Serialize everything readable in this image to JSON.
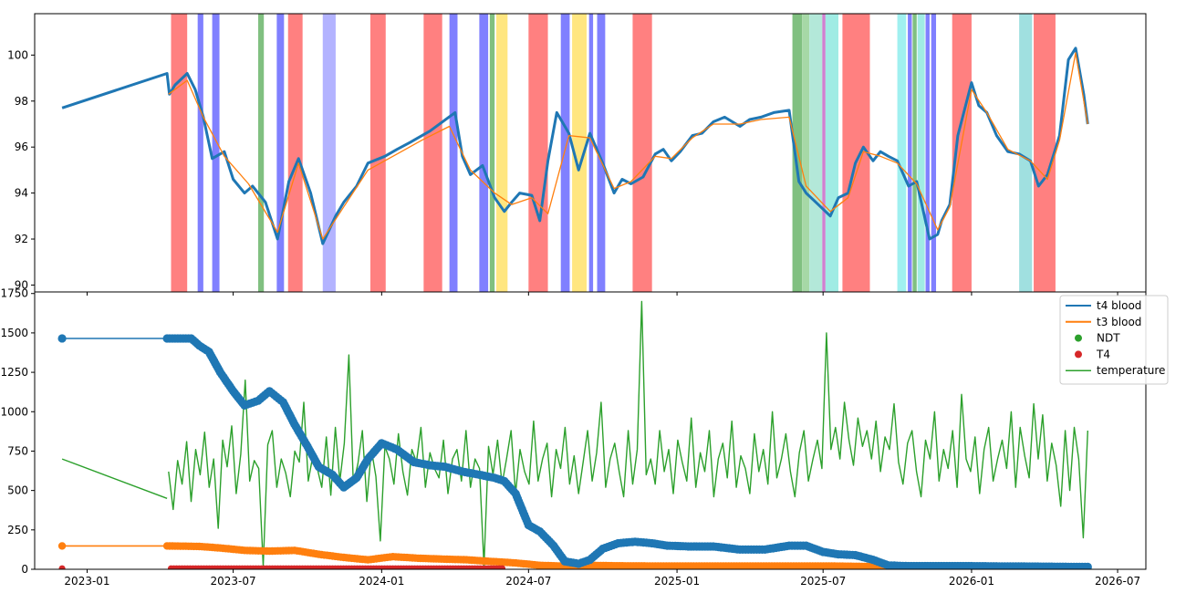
{
  "chart_data": [
    {
      "type": "line",
      "panel": "top",
      "title": "",
      "xlabel": "",
      "ylabel": "",
      "ylim": [
        89.7,
        101.8
      ],
      "yticks": [
        90,
        92,
        94,
        96,
        98,
        100
      ],
      "xlim": [
        "2022-10-28",
        "2026-08-05"
      ],
      "grid": false,
      "series": [
        {
          "color": "#1f77b4",
          "x": [
            "2022-12-01",
            "2023-04-10",
            "2023-04-13",
            "2023-04-20",
            "2023-05-05",
            "2023-05-15",
            "2023-05-25",
            "2023-06-05",
            "2023-06-20",
            "2023-07-01",
            "2023-07-15",
            "2023-07-25",
            "2023-08-10",
            "2023-08-25",
            "2023-09-08",
            "2023-09-20",
            "2023-10-05",
            "2023-10-20",
            "2023-11-05",
            "2023-11-15",
            "2023-12-01",
            "2023-12-15",
            "2024-01-05",
            "2024-01-20",
            "2024-02-05",
            "2024-02-20",
            "2024-03-01",
            "2024-04-01",
            "2024-04-10",
            "2024-04-20",
            "2024-05-05",
            "2024-05-20",
            "2024-06-01",
            "2024-06-10",
            "2024-06-20",
            "2024-07-05",
            "2024-07-15",
            "2024-07-25",
            "2024-08-05",
            "2024-08-20",
            "2024-09-01",
            "2024-09-15",
            "2024-10-01",
            "2024-10-15",
            "2024-10-25",
            "2024-11-05",
            "2024-11-20",
            "2024-12-05",
            "2024-12-15",
            "2024-12-25",
            "2025-01-05",
            "2025-01-20",
            "2025-02-01",
            "2025-02-15",
            "2025-03-01",
            "2025-03-20",
            "2025-04-01",
            "2025-04-15",
            "2025-05-01",
            "2025-05-20",
            "2025-06-01",
            "2025-06-10",
            "2025-06-25",
            "2025-07-10",
            "2025-07-20",
            "2025-08-01",
            "2025-08-10",
            "2025-08-20",
            "2025-09-01",
            "2025-09-10",
            "2025-09-20",
            "2025-10-01",
            "2025-10-15",
            "2025-10-25",
            "2025-11-10",
            "2025-11-20",
            "2025-11-25",
            "2025-12-05",
            "2025-12-15",
            "2026-01-01",
            "2026-01-10",
            "2026-01-20",
            "2026-02-01",
            "2026-02-15",
            "2026-03-01",
            "2026-03-15",
            "2026-03-25",
            "2026-04-05",
            "2026-04-20",
            "2026-05-01",
            "2026-05-10",
            "2026-05-20",
            "2026-05-25"
          ],
          "y": [
            97.7,
            99.2,
            98.3,
            98.7,
            99.2,
            98.5,
            97.3,
            95.5,
            95.8,
            94.6,
            94.0,
            94.3,
            93.6,
            92.0,
            94.5,
            95.5,
            94.0,
            91.8,
            93.0,
            93.6,
            94.3,
            95.3,
            95.6,
            95.9,
            96.2,
            96.5,
            96.7,
            97.5,
            95.6,
            94.8,
            95.2,
            93.8,
            93.2,
            93.6,
            94.0,
            93.9,
            92.8,
            95.4,
            97.5,
            96.6,
            95.0,
            96.6,
            95.3,
            94.0,
            94.6,
            94.4,
            94.7,
            95.7,
            95.9,
            95.4,
            95.8,
            96.5,
            96.6,
            97.1,
            97.3,
            96.9,
            97.2,
            97.3,
            97.5,
            97.6,
            94.5,
            94.0,
            93.5,
            93.0,
            93.8,
            94.0,
            95.3,
            96.0,
            95.4,
            95.8,
            95.6,
            95.4,
            94.3,
            94.5,
            92.0,
            92.2,
            92.8,
            93.5,
            96.5,
            98.8,
            97.8,
            97.5,
            96.5,
            95.8,
            95.7,
            95.4,
            94.3,
            94.8,
            96.5,
            99.8,
            100.3,
            98.3,
            97.0
          ]
        },
        {
          "color": "#ff7f0e",
          "x": [
            "2023-04-12",
            "2023-05-05",
            "2023-05-25",
            "2023-06-20",
            "2023-07-20",
            "2023-08-25",
            "2023-09-20",
            "2023-10-20",
            "2023-11-15",
            "2023-12-15",
            "2024-01-20",
            "2024-02-20",
            "2024-03-25",
            "2024-04-20",
            "2024-05-20",
            "2024-06-10",
            "2024-07-05",
            "2024-07-25",
            "2024-08-20",
            "2024-09-15",
            "2024-10-15",
            "2024-11-05",
            "2024-12-05",
            "2024-12-25",
            "2025-01-20",
            "2025-02-15",
            "2025-03-20",
            "2025-04-15",
            "2025-05-20",
            "2025-06-10",
            "2025-07-10",
            "2025-08-01",
            "2025-08-20",
            "2025-09-10",
            "2025-10-01",
            "2025-10-25",
            "2025-11-20",
            "2025-12-05",
            "2026-01-01",
            "2026-01-20",
            "2026-02-15",
            "2026-03-15",
            "2026-04-05",
            "2026-04-20",
            "2026-05-10",
            "2026-05-25"
          ],
          "y": [
            98.3,
            98.9,
            97.3,
            95.6,
            94.4,
            92.3,
            95.3,
            92.0,
            93.4,
            95.0,
            95.7,
            96.3,
            96.9,
            95.0,
            94.0,
            93.5,
            93.8,
            93.1,
            96.5,
            96.4,
            94.2,
            94.5,
            95.6,
            95.5,
            96.4,
            97.0,
            97.0,
            97.2,
            97.3,
            94.3,
            93.2,
            93.8,
            95.8,
            95.6,
            95.3,
            94.4,
            92.4,
            93.4,
            98.5,
            97.5,
            95.9,
            95.4,
            94.6,
            96.3,
            100.1,
            97.0
          ]
        }
      ],
      "bands": [
        {
          "start": "2023-04-15",
          "end": "2023-05-05",
          "color": "#ff8080"
        },
        {
          "start": "2023-05-18",
          "end": "2023-05-25",
          "color": "#8080ff"
        },
        {
          "start": "2023-06-05",
          "end": "2023-06-14",
          "color": "#8080ff"
        },
        {
          "start": "2023-08-01",
          "end": "2023-08-08",
          "color": "#80c080"
        },
        {
          "start": "2023-08-24",
          "end": "2023-09-02",
          "color": "#8080ff"
        },
        {
          "start": "2023-09-07",
          "end": "2023-09-25",
          "color": "#ff8080"
        },
        {
          "start": "2023-10-20",
          "end": "2023-11-05",
          "color": "#b3b3ff"
        },
        {
          "start": "2023-12-18",
          "end": "2024-01-06",
          "color": "#ff8080"
        },
        {
          "start": "2024-02-22",
          "end": "2024-03-16",
          "color": "#ff8080"
        },
        {
          "start": "2024-03-25",
          "end": "2024-04-04",
          "color": "#8080ff"
        },
        {
          "start": "2024-05-01",
          "end": "2024-05-12",
          "color": "#8080ff"
        },
        {
          "start": "2024-05-14",
          "end": "2024-05-20",
          "color": "#80c080"
        },
        {
          "start": "2024-05-22",
          "end": "2024-06-05",
          "color": "#ffe680"
        },
        {
          "start": "2024-07-01",
          "end": "2024-07-25",
          "color": "#ff8080"
        },
        {
          "start": "2024-08-10",
          "end": "2024-08-21",
          "color": "#8080ff"
        },
        {
          "start": "2024-08-24",
          "end": "2024-09-11",
          "color": "#ffe680"
        },
        {
          "start": "2024-09-14",
          "end": "2024-09-19",
          "color": "#8080ff"
        },
        {
          "start": "2024-09-24",
          "end": "2024-10-04",
          "color": "#8080ff"
        },
        {
          "start": "2024-11-07",
          "end": "2024-12-01",
          "color": "#ff8080"
        },
        {
          "start": "2025-05-24",
          "end": "2025-06-05",
          "color": "#80c080"
        },
        {
          "start": "2025-06-05",
          "end": "2025-06-14",
          "color": "#a6d8a6"
        },
        {
          "start": "2025-06-14",
          "end": "2025-06-30",
          "color": "#b3e8d9"
        },
        {
          "start": "2025-06-30",
          "end": "2025-07-04",
          "color": "#d080d0"
        },
        {
          "start": "2025-07-04",
          "end": "2025-07-20",
          "color": "#a0ece4"
        },
        {
          "start": "2025-07-25",
          "end": "2025-08-28",
          "color": "#ff8080"
        },
        {
          "start": "2025-10-01",
          "end": "2025-10-12",
          "color": "#a0f0f0"
        },
        {
          "start": "2025-10-14",
          "end": "2025-10-19",
          "color": "#8080ff"
        },
        {
          "start": "2025-10-20",
          "end": "2025-10-25",
          "color": "#80c080"
        },
        {
          "start": "2025-10-26",
          "end": "2025-11-04",
          "color": "#a0ece4"
        },
        {
          "start": "2025-11-05",
          "end": "2025-11-10",
          "color": "#8080ff"
        },
        {
          "start": "2025-11-12",
          "end": "2025-11-18",
          "color": "#8080ff"
        },
        {
          "start": "2025-12-08",
          "end": "2026-01-01",
          "color": "#ff8080"
        },
        {
          "start": "2026-03-01",
          "end": "2026-03-17",
          "color": "#a0e0e0"
        },
        {
          "start": "2026-03-19",
          "end": "2026-04-15",
          "color": "#ff8080"
        }
      ]
    },
    {
      "type": "line",
      "panel": "bottom",
      "title": "",
      "xlabel": "",
      "ylabel": "",
      "ylim": [
        0,
        1760
      ],
      "yticks": [
        0,
        250,
        500,
        750,
        1000,
        1250,
        1500,
        1750
      ],
      "xlim": [
        "2022-10-28",
        "2026-08-05"
      ],
      "xticks": [
        "2023-01",
        "2023-07",
        "2024-01",
        "2024-07",
        "2025-01",
        "2025-07",
        "2026-01",
        "2026-07"
      ],
      "legend": "top-right",
      "grid": false,
      "series": [
        {
          "name": "t4 blood",
          "color": "#1f77b4",
          "style": "line-with-markers",
          "x": [
            "2022-12-01",
            "2023-04-10",
            "2023-05-10",
            "2023-05-20",
            "2023-06-01",
            "2023-06-15",
            "2023-07-01",
            "2023-07-15",
            "2023-08-01",
            "2023-08-15",
            "2023-09-01",
            "2023-09-15",
            "2023-10-01",
            "2023-10-15",
            "2023-11-01",
            "2023-11-15",
            "2023-12-01",
            "2023-12-15",
            "2024-01-01",
            "2024-01-20",
            "2024-02-10",
            "2024-03-01",
            "2024-03-20",
            "2024-04-10",
            "2024-05-01",
            "2024-05-20",
            "2024-06-01",
            "2024-06-15",
            "2024-07-01",
            "2024-07-15",
            "2024-08-01",
            "2024-08-15",
            "2024-09-01",
            "2024-09-15",
            "2024-10-01",
            "2024-10-20",
            "2024-11-10",
            "2024-12-01",
            "2024-12-20",
            "2025-01-15",
            "2025-02-15",
            "2025-03-20",
            "2025-04-20",
            "2025-05-20",
            "2025-06-10",
            "2025-07-01",
            "2025-07-20",
            "2025-08-10",
            "2025-09-01",
            "2025-09-20",
            "2025-10-15",
            "2026-01-01",
            "2026-05-25"
          ],
          "y": [
            1465,
            1465,
            1465,
            1420,
            1380,
            1250,
            1130,
            1040,
            1070,
            1130,
            1060,
            920,
            780,
            650,
            600,
            520,
            580,
            700,
            800,
            760,
            680,
            660,
            650,
            620,
            600,
            580,
            560,
            480,
            280,
            240,
            150,
            50,
            35,
            60,
            130,
            165,
            175,
            165,
            150,
            145,
            145,
            125,
            125,
            150,
            150,
            110,
            95,
            90,
            60,
            25,
            20,
            20,
            15
          ]
        },
        {
          "name": "t3 blood",
          "color": "#ff7f0e",
          "style": "line-with-markers",
          "x": [
            "2022-12-01",
            "2023-04-10",
            "2023-05-20",
            "2023-06-15",
            "2023-07-15",
            "2023-08-15",
            "2023-09-15",
            "2023-10-15",
            "2023-11-15",
            "2023-12-15",
            "2024-01-15",
            "2024-02-15",
            "2024-03-15",
            "2024-04-15",
            "2024-05-15",
            "2024-06-15",
            "2024-07-15",
            "2024-08-15",
            "2024-09-15",
            "2024-10-15",
            "2025-01-15",
            "2025-04-15",
            "2025-07-15",
            "2025-10-15",
            "2026-01-15",
            "2026-05-25"
          ],
          "y": [
            148,
            148,
            145,
            135,
            120,
            115,
            120,
            95,
            75,
            60,
            80,
            70,
            65,
            60,
            50,
            40,
            25,
            20,
            25,
            22,
            20,
            20,
            20,
            15,
            15,
            15
          ]
        },
        {
          "name": "NDT",
          "color": "#2ca02c",
          "style": "markers",
          "x": [],
          "y": []
        },
        {
          "name": "T4",
          "color": "#d62728",
          "style": "markers",
          "x": [
            "2022-12-01",
            "2023-04-15",
            "2023-06-01",
            "2023-08-01",
            "2023-10-01",
            "2023-12-01",
            "2024-02-01",
            "2024-04-01",
            "2024-06-01"
          ],
          "y": [
            5,
            5,
            5,
            5,
            5,
            5,
            5,
            5,
            5
          ]
        },
        {
          "name": "temperature",
          "color": "#2ca02c",
          "style": "line",
          "x_start": "2023-04-12",
          "x_end": "2026-05-25",
          "head": {
            "x": [
              "2022-12-01",
              "2023-04-10"
            ],
            "y": [
              700,
              450
            ]
          },
          "y": [
            620,
            380,
            690,
            540,
            810,
            430,
            760,
            600,
            870,
            520,
            700,
            260,
            820,
            650,
            910,
            480,
            730,
            1200,
            560,
            690,
            640,
            20,
            790,
            880,
            520,
            700,
            610,
            460,
            750,
            680,
            1060,
            560,
            720,
            640,
            520,
            840,
            470,
            900,
            560,
            800,
            1360,
            540,
            670,
            880,
            430,
            760,
            590,
            180,
            780,
            700,
            540,
            860,
            620,
            470,
            760,
            680,
            900,
            520,
            740,
            640,
            580,
            820,
            480,
            700,
            760,
            560,
            880,
            520,
            700,
            640,
            20,
            780,
            600,
            820,
            540,
            700,
            880,
            480,
            760,
            620,
            540,
            940,
            560,
            700,
            800,
            460,
            760,
            640,
            900,
            540,
            720,
            480,
            680,
            880,
            560,
            740,
            1060,
            520,
            700,
            800,
            620,
            460,
            880,
            540,
            760,
            1700,
            600,
            700,
            540,
            880,
            620,
            760,
            480,
            820,
            680,
            560,
            960,
            520,
            740,
            620,
            880,
            460,
            700,
            800,
            580,
            940,
            520,
            720,
            640,
            480,
            860,
            620,
            760,
            540,
            1000,
            580,
            700,
            860,
            620,
            460,
            740,
            880,
            560,
            700,
            820,
            640,
            1500,
            760,
            900,
            700,
            1060,
            820,
            660,
            960,
            780,
            880,
            700,
            940,
            620,
            840,
            760,
            1050,
            680,
            540,
            800,
            880,
            620,
            460,
            820,
            700,
            1000,
            560,
            760,
            640,
            880,
            520,
            1110,
            700,
            620,
            840,
            480,
            760,
            900,
            560,
            700,
            820,
            640,
            1000,
            520,
            900,
            720,
            580,
            1050,
            700,
            980,
            560,
            800,
            660,
            400,
            880,
            500,
            900,
            700,
            200,
            880
          ]
        }
      ]
    }
  ]
}
